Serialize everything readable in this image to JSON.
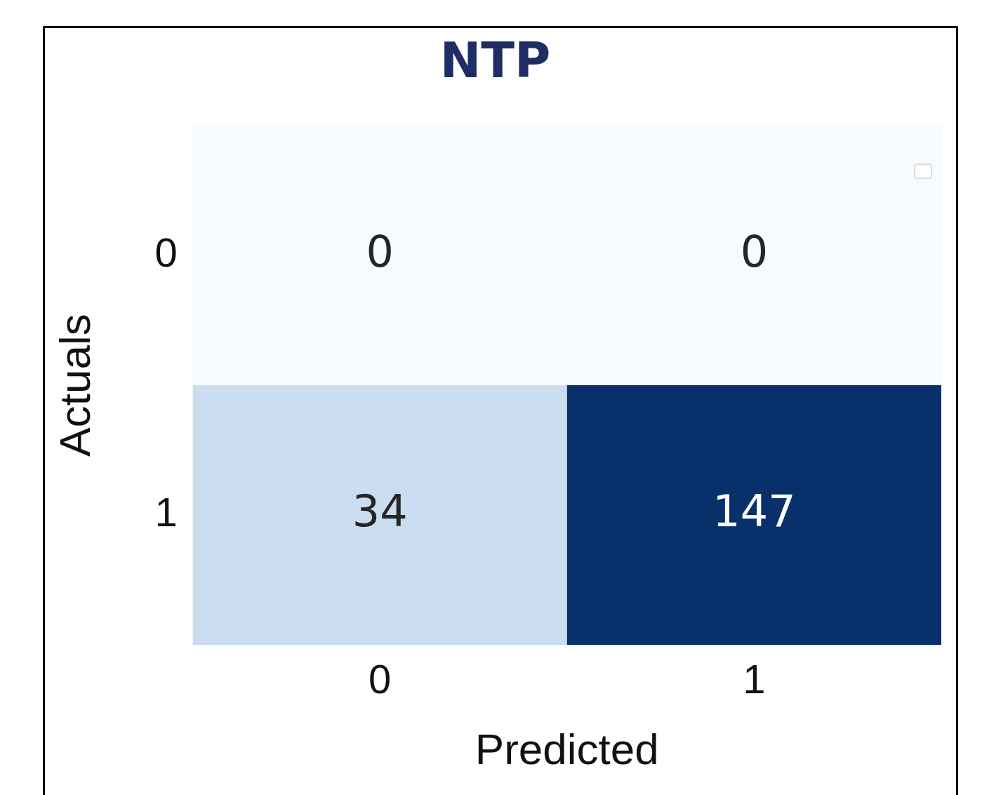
{
  "chart_data": {
    "type": "heatmap",
    "title": "NTP",
    "xlabel": "Predicted",
    "ylabel": "Actuals",
    "categories": [
      "0",
      "1"
    ],
    "y_categories": [
      "0",
      "1"
    ],
    "cells": [
      [
        0,
        0
      ],
      [
        34,
        147
      ]
    ],
    "data_labels": true
  }
}
